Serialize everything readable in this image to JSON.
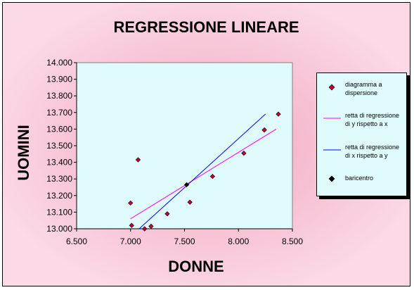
{
  "chart_data": {
    "type": "scatter",
    "title": "REGRESSIONE LINEARE",
    "xlabel": "DONNE",
    "ylabel": "UOMINI",
    "xlim": [
      6.5,
      8.5
    ],
    "ylim": [
      13.0,
      14.0
    ],
    "x_ticks": [
      6.5,
      7.0,
      7.5,
      8.0,
      8.5
    ],
    "x_tick_labels": [
      "6.500",
      "7.000",
      "7.500",
      "8.000",
      "8.500"
    ],
    "y_ticks": [
      13.0,
      13.1,
      13.2,
      13.3,
      13.4,
      13.5,
      13.6,
      13.7,
      13.8,
      13.9,
      14.0
    ],
    "y_tick_labels": [
      "13.000",
      "13.100",
      "13.200",
      "13.300",
      "13.400",
      "13.500",
      "13.600",
      "13.700",
      "13.800",
      "13.900",
      "14.000"
    ],
    "grid": false,
    "legend_position": "right",
    "series": [
      {
        "name": "diagramma a dispersione",
        "kind": "scatter",
        "color": "#c0003c",
        "points": [
          [
            7.0,
            13.155
          ],
          [
            7.01,
            13.02
          ],
          [
            7.07,
            13.415
          ],
          [
            7.13,
            13.0
          ],
          [
            7.19,
            13.015
          ],
          [
            7.34,
            13.09
          ],
          [
            7.55,
            13.16
          ],
          [
            7.76,
            13.315
          ],
          [
            8.05,
            13.455
          ],
          [
            8.24,
            13.595
          ],
          [
            8.37,
            13.69
          ]
        ]
      },
      {
        "name": "retta di regressione di y rispetto a x",
        "kind": "line",
        "color": "#ff00ff",
        "points": [
          [
            7.0,
            13.06
          ],
          [
            8.35,
            13.6
          ]
        ]
      },
      {
        "name": "retta di regressione di x rispetto a y",
        "kind": "line",
        "color": "#0000ff",
        "points": [
          [
            7.08,
            13.0
          ],
          [
            8.25,
            13.69
          ]
        ]
      },
      {
        "name": "baricentro",
        "kind": "scatter",
        "color": "#000000",
        "points": [
          [
            7.52,
            13.265
          ]
        ]
      }
    ]
  },
  "legend": {
    "items": [
      {
        "label": "diagramma a dispersione",
        "symbol": "diamond",
        "color": "#c0003c"
      },
      {
        "label": "retta di regressione di y rispetto a x",
        "symbol": "line",
        "color": "#ff00ff"
      },
      {
        "label": "retta di regressione di x rispetto a y",
        "symbol": "line",
        "color": "#0000ff"
      },
      {
        "label": "baricentro",
        "symbol": "diamond",
        "color": "#000000"
      }
    ]
  },
  "colors": {
    "plot_background": "#e0fbfb",
    "chart_background": "#f6bdd1"
  }
}
